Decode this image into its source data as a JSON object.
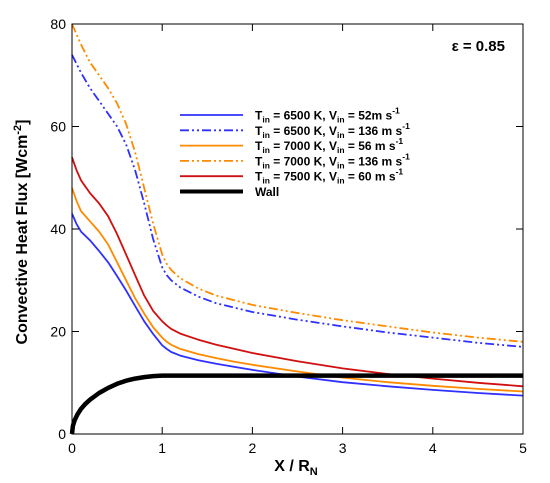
{
  "chart_data": {
    "type": "line",
    "xlabel": "X / R",
    "xlabel_sub": "N",
    "ylabel": "Convective Heat Flux [Wcm",
    "ylabel_sup": "-2",
    "ylabel_end": "]",
    "xlim": [
      0,
      5
    ],
    "ylim": [
      0,
      80
    ],
    "xticks": [
      0,
      1,
      2,
      3,
      4,
      5
    ],
    "yticks": [
      0,
      20,
      40,
      60,
      80
    ],
    "annotation": "ε = 0.85",
    "legend_position": "top-right",
    "grid": false,
    "series": [
      {
        "name": "T in = 6500 K, V in = 52m s-1",
        "label": {
          "p1": "T",
          "s1": "in",
          "p2": " = 6500 K, V",
          "s2": "in",
          "p3": " = 52m s",
          "s3": "-1"
        },
        "color": "#3030ff",
        "style": "solid",
        "x": [
          0,
          0.05,
          0.1,
          0.2,
          0.3,
          0.4,
          0.5,
          0.6,
          0.7,
          0.8,
          0.9,
          1.0,
          1.05,
          1.1,
          1.2,
          1.4,
          1.6,
          1.8,
          2.0,
          2.5,
          3.0,
          3.5,
          4.0,
          4.5,
          5.0
        ],
        "y": [
          43,
          41,
          39.5,
          37.8,
          35.7,
          33.5,
          30.8,
          28,
          25,
          22,
          19.5,
          17.3,
          16.6,
          16,
          15.3,
          14.4,
          13.7,
          13.1,
          12.5,
          11.2,
          10.1,
          9.3,
          8.6,
          8.0,
          7.5
        ]
      },
      {
        "name": "T in = 6500 K, V in = 136 m s-1",
        "label": {
          "p1": "T",
          "s1": "in",
          "p2": " = 6500 K, V",
          "s2": "in",
          "p3": " = 136 m s",
          "s3": "-1"
        },
        "color": "#3030ff",
        "style": "dashdotdot",
        "x": [
          0,
          0.1,
          0.2,
          0.3,
          0.4,
          0.5,
          0.6,
          0.7,
          0.8,
          0.9,
          1.0,
          1.05,
          1.1,
          1.2,
          1.4,
          1.6,
          2.0,
          2.5,
          3.0,
          3.5,
          4.0,
          4.5,
          5.0
        ],
        "y": [
          74,
          70.5,
          67.5,
          65,
          62.5,
          60,
          56.5,
          51.5,
          45,
          38,
          32.5,
          31,
          30,
          28.6,
          26.8,
          25.5,
          23.8,
          22.3,
          21,
          19.8,
          18.8,
          17.8,
          17
        ]
      },
      {
        "name": "T in = 7000 K, V in = 56 m s-1",
        "label": {
          "p1": "T",
          "s1": "in",
          "p2": " = 7000 K, V",
          "s2": "in",
          "p3": " = 56 m s",
          "s3": "-1"
        },
        "color": "#ff8a00",
        "style": "solid",
        "x": [
          0,
          0.05,
          0.1,
          0.2,
          0.3,
          0.4,
          0.5,
          0.6,
          0.7,
          0.8,
          0.9,
          1.0,
          1.05,
          1.1,
          1.2,
          1.4,
          1.6,
          1.8,
          2.0,
          2.5,
          3.0,
          3.5,
          4.0,
          4.5,
          5.0
        ],
        "y": [
          48,
          45.5,
          43.5,
          41.5,
          39.5,
          37,
          33.5,
          30,
          26.5,
          23.5,
          20.8,
          18.8,
          18,
          17.4,
          16.6,
          15.6,
          14.8,
          14.1,
          13.5,
          12.2,
          11,
          10.1,
          9.4,
          8.8,
          8.3
        ]
      },
      {
        "name": "T in = 7000 K, V in = 136 m s-1",
        "label": {
          "p1": "T",
          "s1": "in",
          "p2": " = 7000 K, V",
          "s2": "in",
          "p3": " = 136 m s",
          "s3": "-1"
        },
        "color": "#ff8a00",
        "style": "dashdotdot",
        "x": [
          0,
          0.1,
          0.2,
          0.3,
          0.4,
          0.5,
          0.6,
          0.7,
          0.8,
          0.9,
          1.0,
          1.05,
          1.1,
          1.2,
          1.4,
          1.6,
          2.0,
          2.5,
          3.0,
          3.5,
          4.0,
          4.5,
          5.0
        ],
        "y": [
          80,
          76,
          72.5,
          70,
          67.5,
          64.5,
          60.5,
          55,
          48,
          41,
          35,
          33.2,
          32,
          30.4,
          28.4,
          27,
          25.2,
          23.6,
          22.2,
          21,
          19.8,
          18.8,
          18
        ]
      },
      {
        "name": "T in = 7500 K, V in = 60 m s-1",
        "label": {
          "p1": "T",
          "s1": "in",
          "p2": " = 7500 K, V",
          "s2": "in",
          "p3": " = 60 m s",
          "s3": "-1"
        },
        "color": "#d01010",
        "style": "solid",
        "x": [
          0,
          0.05,
          0.1,
          0.2,
          0.3,
          0.4,
          0.5,
          0.6,
          0.7,
          0.8,
          0.9,
          1.0,
          1.05,
          1.1,
          1.2,
          1.4,
          1.6,
          1.8,
          2.0,
          2.5,
          3.0,
          3.5,
          4.0,
          4.5,
          5.0
        ],
        "y": [
          54,
          51.5,
          49.5,
          47,
          45,
          42.5,
          39,
          35,
          31,
          27,
          24,
          22,
          21.2,
          20.5,
          19.6,
          18.4,
          17.4,
          16.6,
          15.8,
          14.2,
          12.8,
          11.7,
          10.8,
          10,
          9.3
        ]
      },
      {
        "name": "Wall",
        "label": {
          "p1": "Wall",
          "s1": "",
          "p2": "",
          "s2": "",
          "p3": "",
          "s3": ""
        },
        "color": "#000000",
        "style": "thick",
        "x": [
          0,
          0.01,
          0.03,
          0.06,
          0.1,
          0.15,
          0.2,
          0.3,
          0.4,
          0.5,
          0.6,
          0.7,
          0.8,
          0.9,
          1.0,
          1.5,
          2.0,
          3.0,
          4.0,
          5.0
        ],
        "y": [
          0,
          1.6,
          2.7,
          3.8,
          4.9,
          5.9,
          6.7,
          8.0,
          9.0,
          9.8,
          10.4,
          10.8,
          11.1,
          11.3,
          11.4,
          11.4,
          11.4,
          11.4,
          11.4,
          11.4
        ]
      }
    ]
  }
}
